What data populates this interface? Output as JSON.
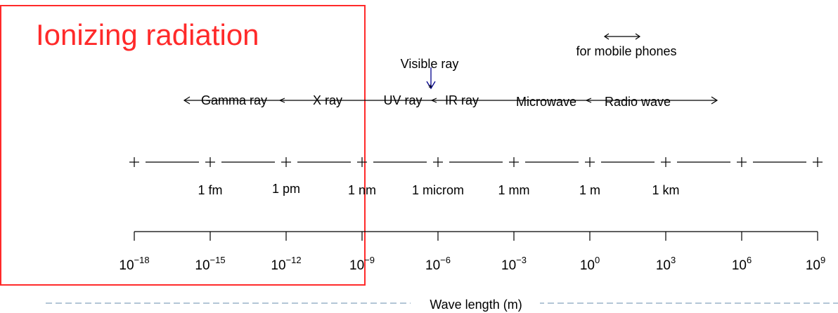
{
  "title": "Ionizing radiation",
  "band_labels": [
    "Gamma ray",
    "X ray",
    "UV ray",
    "IR ray",
    "Microwave",
    "Radio wave"
  ],
  "visible_label": "Visible ray",
  "mobile_label": "for mobile phones",
  "unit_labels": [
    "1 fm",
    "1 pm",
    "1 nm",
    "1 microm",
    "1 mm",
    "1 m",
    "1 km"
  ],
  "axis": {
    "base": "10",
    "exponents": [
      "−18",
      "−15",
      "−12",
      "−9",
      "−6",
      "−3",
      "0",
      "3",
      "6",
      "9"
    ],
    "xlabel": "Wave length (m)"
  },
  "colors": {
    "highlight_box": "#ff2a2a",
    "visible_arrow": "#00008b",
    "dashed_line": "#9ab3c9"
  }
}
